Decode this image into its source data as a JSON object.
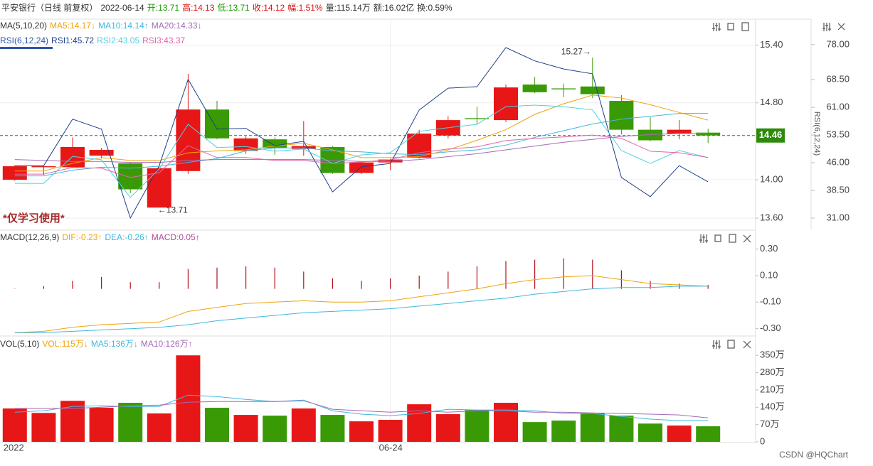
{
  "header": {
    "title": "平安银行（日线 前复权）",
    "date": "2022-06-14",
    "fields": [
      {
        "text": "开:13.71",
        "color": "#1a9a00"
      },
      {
        "text": "高:14.13",
        "color": "#e01010"
      },
      {
        "text": "低:13.71",
        "color": "#1a9a00"
      },
      {
        "text": "收:14.12",
        "color": "#e01010"
      },
      {
        "text": "幅:1.51%",
        "color": "#e01010"
      },
      {
        "text": "量:115.14万",
        "color": "#333333"
      },
      {
        "text": "额:16.02亿",
        "color": "#333333"
      },
      {
        "text": "换:0.59%",
        "color": "#333333"
      }
    ]
  },
  "footer": "CSDN @HQChart",
  "chart_data": [
    {
      "type": "candlestick",
      "indicator": "MA(5,10,20)",
      "indicator2": "RSI(6,12,24)",
      "y2label": "RSI(6,12,24)",
      "watermark": "*仅学习使用*",
      "max_label": "15.27→",
      "min_label": "←13.71",
      "categories": [
        "2022",
        null,
        null,
        null,
        null,
        null,
        null,
        null,
        null,
        null,
        null,
        null,
        null,
        "06-24",
        null,
        null,
        null,
        null,
        null,
        null,
        null,
        null,
        null,
        null,
        null
      ],
      "open": [
        14.0,
        14.13,
        14.13,
        14.25,
        14.17,
        13.71,
        14.09,
        14.73,
        14.3,
        14.42,
        14.32,
        14.34,
        14.07,
        14.18,
        14.23,
        14.46,
        14.64,
        14.62,
        14.99,
        14.95,
        14.97,
        14.82,
        14.52,
        14.48,
        14.49
      ],
      "high": [
        14.15,
        14.15,
        14.44,
        14.33,
        14.18,
        14.13,
        15.1,
        14.82,
        14.45,
        14.44,
        14.61,
        14.35,
        14.19,
        14.22,
        14.52,
        14.66,
        14.76,
        14.99,
        15.07,
        15.0,
        15.27,
        14.88,
        14.65,
        14.62,
        14.53
      ],
      "low": [
        13.99,
        14.05,
        14.12,
        14.22,
        13.86,
        13.71,
        14.06,
        14.42,
        14.27,
        14.26,
        14.25,
        14.06,
        14.06,
        14.1,
        14.22,
        14.43,
        14.58,
        14.6,
        14.9,
        14.86,
        14.85,
        14.47,
        14.4,
        14.42,
        14.38
      ],
      "close": [
        14.14,
        14.14,
        14.34,
        14.31,
        13.9,
        14.12,
        14.73,
        14.43,
        14.43,
        14.33,
        14.35,
        14.07,
        14.18,
        14.21,
        14.48,
        14.62,
        14.63,
        14.96,
        14.91,
        14.94,
        14.89,
        14.52,
        14.41,
        14.52,
        14.46
      ],
      "up_color": "#e81717",
      "down_color": "#3a9a06",
      "last_price": 14.46,
      "ylim": [
        13.49,
        15.67
      ],
      "yticks": [
        {
          "value": 13.6,
          "label": "13.60"
        },
        {
          "value": 14.0,
          "label": "14.00"
        },
        {
          "value": 14.8,
          "label": "14.80"
        },
        {
          "value": 15.4,
          "label": "15.40"
        }
      ],
      "y2lim": [
        28.1,
        84.9
      ],
      "y2ticks": [
        {
          "value": 31,
          "label": "31.00"
        },
        {
          "value": 38.5,
          "label": "38.50"
        },
        {
          "value": 46,
          "label": "46.00"
        },
        {
          "value": 53.5,
          "label": "53.50"
        },
        {
          "value": 61,
          "label": "61.00"
        },
        {
          "value": 68.5,
          "label": "68.50"
        },
        {
          "value": 78,
          "label": "78.00"
        }
      ],
      "grid": true,
      "series": [
        {
          "name": "MA5:14.17↓",
          "color": "#f0a30a",
          "values": [
            14.09,
            14.09,
            14.17,
            14.23,
            14.2,
            14.2,
            14.28,
            14.3,
            14.31,
            14.35,
            14.38,
            14.31,
            14.23,
            14.23,
            14.24,
            14.31,
            14.41,
            14.52,
            14.68,
            14.79,
            14.88,
            14.85,
            14.78,
            14.7,
            14.62
          ]
        },
        {
          "name": "MA10:14.14↑",
          "color": "#3fb8e0",
          "values": [
            14.04,
            14.04,
            14.1,
            14.13,
            14.12,
            14.14,
            14.18,
            14.22,
            14.3,
            14.33,
            14.33,
            14.3,
            14.29,
            14.27,
            14.26,
            14.29,
            14.31,
            14.36,
            14.44,
            14.51,
            14.58,
            14.63,
            14.66,
            14.69,
            14.69
          ]
        },
        {
          "name": "MA20:14.33↓",
          "color": "#a36ab5",
          "values": [
            14.21,
            14.2,
            14.19,
            14.19,
            14.18,
            14.18,
            14.2,
            14.21,
            14.21,
            14.21,
            14.21,
            14.2,
            14.19,
            14.19,
            14.21,
            14.24,
            14.27,
            14.31,
            14.35,
            14.39,
            14.42,
            14.45,
            14.47,
            14.48,
            14.48
          ]
        },
        {
          "name": "RSI1:45.72",
          "color": "#1e3f8a",
          "axis": "y2",
          "values": [
            45.2,
            45.2,
            57.8,
            55.1,
            31.0,
            45.2,
            68.6,
            55.1,
            55.3,
            50.6,
            51.8,
            38.1,
            44.9,
            45.8,
            60.3,
            66.2,
            66.6,
            77.2,
            73.6,
            71.4,
            70.1,
            42.0,
            36.8,
            45.2,
            40.8
          ]
        },
        {
          "name": "RSI2:43.05",
          "color": "#4fd0e0",
          "axis": "y2",
          "values": [
            40.4,
            40.4,
            47.7,
            46.8,
            36.6,
            44.3,
            56.4,
            50.1,
            50.4,
            49.1,
            49.7,
            45.8,
            48.1,
            48.7,
            54.5,
            55.5,
            56.4,
            61.2,
            61.6,
            61.2,
            60.3,
            49.3,
            45.8,
            49.3,
            47.4
          ]
        },
        {
          "name": "RSI3:43.37",
          "color": "#e066a6",
          "axis": "y2",
          "values": [
            42.9,
            42.9,
            44.7,
            44.5,
            42.0,
            43.3,
            50.6,
            47.4,
            47.4,
            46.6,
            46.6,
            45.8,
            46.2,
            46.8,
            48.7,
            49.7,
            50.3,
            52.0,
            52.6,
            53.0,
            53.5,
            52.6,
            49.1,
            48.7,
            47.4
          ]
        }
      ]
    },
    {
      "type": "macd",
      "indicator": "MACD(12,26,9)",
      "ylim": [
        -0.35,
        0.33
      ],
      "yticks": [
        {
          "value": -0.3,
          "label": "-0.30"
        },
        {
          "value": -0.1,
          "label": "-0.10"
        },
        {
          "value": 0.1,
          "label": "0.10"
        },
        {
          "value": 0.3,
          "label": "0.30"
        }
      ],
      "series": [
        {
          "name": "DIF:-0.23↑",
          "color": "#f0a30a",
          "values": [
            -0.33,
            -0.32,
            -0.29,
            -0.27,
            -0.26,
            -0.25,
            -0.17,
            -0.14,
            -0.11,
            -0.1,
            -0.09,
            -0.1,
            -0.1,
            -0.09,
            -0.06,
            -0.03,
            0.0,
            0.04,
            0.07,
            0.09,
            0.1,
            0.07,
            0.04,
            0.03,
            0.02
          ]
        },
        {
          "name": "DEA:-0.26↑",
          "color": "#3fb8e0",
          "values": [
            -0.33,
            -0.33,
            -0.32,
            -0.31,
            -0.3,
            -0.29,
            -0.27,
            -0.24,
            -0.22,
            -0.2,
            -0.18,
            -0.17,
            -0.16,
            -0.15,
            -0.13,
            -0.11,
            -0.09,
            -0.07,
            -0.04,
            -0.02,
            0.0,
            0.01,
            0.01,
            0.02,
            0.02
          ]
        }
      ],
      "histogram": {
        "name": "MACD:0.05↑",
        "color": "#b04a9e",
        "bar_color": "#b5121b",
        "values": [
          0.0,
          0.02,
          0.06,
          0.09,
          0.05,
          0.05,
          0.15,
          0.16,
          0.17,
          0.16,
          0.13,
          0.08,
          0.06,
          0.08,
          0.1,
          0.13,
          0.17,
          0.21,
          0.22,
          0.23,
          0.22,
          0.14,
          0.06,
          0.04,
          0.03
        ]
      }
    },
    {
      "type": "volume",
      "indicator": "VOL(5,10)",
      "ylim": [
        0,
        365
      ],
      "yticks": [
        0,
        {
          "value": 70,
          "label": "70万"
        },
        {
          "value": 140,
          "label": "140万"
        },
        {
          "value": 210,
          "label": "210万"
        },
        {
          "value": 280,
          "label": "280万"
        },
        {
          "value": 350,
          "label": "350万"
        }
      ],
      "bars": {
        "name": "VOL:115万↓",
        "color": "#f0a30a",
        "values": [
          135,
          117,
          166,
          138,
          158,
          115,
          350,
          138,
          109,
          106,
          135,
          109,
          83,
          89,
          152,
          112,
          129,
          158,
          80,
          86,
          115,
          106,
          74,
          66,
          63
        ]
      },
      "series": [
        {
          "name": "MA5:136万↓",
          "color": "#3fb8e0",
          "values": [
            120,
            126,
            143,
            146,
            143,
            143,
            189,
            183,
            172,
            163,
            169,
            126,
            112,
            106,
            115,
            132,
            129,
            129,
            126,
            115,
            115,
            103,
            92,
            86,
            86
          ]
        },
        {
          "name": "MA10:126万↑",
          "color": "#a36ab5",
          "values": [
            135,
            135,
            135,
            140,
            146,
            149,
            160,
            163,
            163,
            163,
            166,
            132,
            126,
            120,
            126,
            120,
            126,
            126,
            120,
            120,
            117,
            115,
            112,
            109,
            97
          ]
        }
      ]
    }
  ]
}
